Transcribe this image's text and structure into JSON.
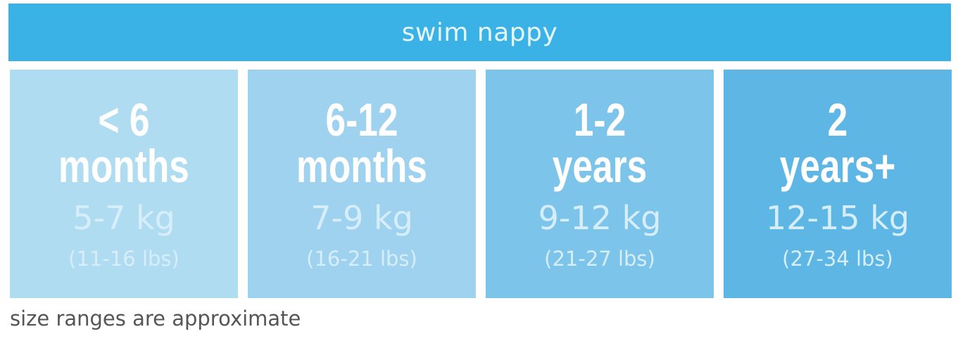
{
  "header": {
    "title": "swim nappy",
    "color": "#3bb2e6"
  },
  "sizes": [
    {
      "line1": "< 6",
      "line2": "months",
      "kg": "5-7 kg",
      "lbs": "(11-16 lbs)",
      "color": "#b0dcf2"
    },
    {
      "line1": "6-12",
      "line2": "months",
      "kg": "7-9 kg",
      "lbs": "(16-21 lbs)",
      "color": "#9fd2ef"
    },
    {
      "line1": "1-2",
      "line2": "years",
      "kg": "9-12 kg",
      "lbs": "(21-27 lbs)",
      "color": "#7dc4ea"
    },
    {
      "line1": "2",
      "line2": "years+",
      "kg": "12-15 kg",
      "lbs": "(27-34 lbs)",
      "color": "#5db6e4"
    }
  ],
  "footer": {
    "note": "size ranges are approximate"
  }
}
